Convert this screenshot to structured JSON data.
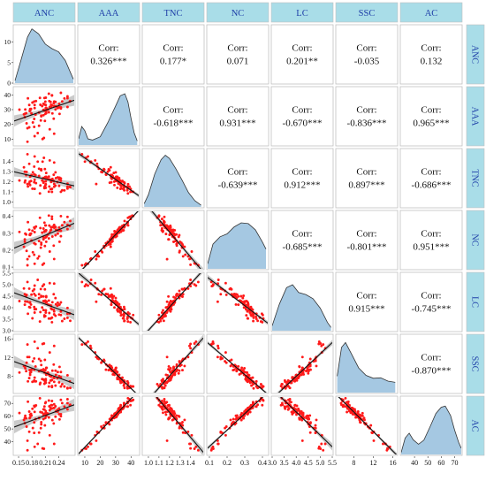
{
  "chart_data": {
    "type": "scatter",
    "variables": [
      "ANC",
      "AAA",
      "TNC",
      "NC",
      "LC",
      "SSC",
      "AC"
    ],
    "axes": {
      "ANC": {
        "range": [
          0.14,
          0.275
        ],
        "ticks": [
          0.15,
          0.18,
          0.21,
          0.24
        ],
        "tick_labels": [
          "0.15",
          "0.18",
          "0.21",
          "0.24"
        ]
      },
      "AAA": {
        "range": [
          6,
          45
        ],
        "ticks": [
          10,
          20,
          30,
          40
        ],
        "tick_labels": [
          "10",
          "20",
          "30",
          "40"
        ]
      },
      "TNC": {
        "range": [
          0.95,
          1.52
        ],
        "ticks": [
          1.0,
          1.1,
          1.2,
          1.3,
          1.4
        ],
        "tick_labels": [
          "1.0",
          "1.1",
          "1.2",
          "1.3",
          "1.4"
        ]
      },
      "NC": {
        "range": [
          0.09,
          0.43
        ],
        "ticks": [
          0.1,
          0.2,
          0.3,
          0.4
        ],
        "tick_labels": [
          "0.1",
          "0.2",
          "0.3",
          "0.4"
        ]
      },
      "LC": {
        "range": [
          3.0,
          5.5
        ],
        "ticks": [
          3.0,
          3.5,
          4.0,
          4.5,
          5.0,
          5.5
        ],
        "tick_labels": [
          "3.0",
          "3.5",
          "4.0",
          "4.5",
          "5.0",
          "5.5"
        ]
      },
      "SSC": {
        "range": [
          4.5,
          16.8
        ],
        "ticks": [
          8,
          12,
          16
        ],
        "tick_labels": [
          "8",
          "12",
          "16"
        ]
      },
      "AC": {
        "range": [
          30,
          75
        ],
        "ticks": [
          40,
          50,
          60,
          70
        ],
        "tick_labels": [
          "40",
          "50",
          "60",
          "70"
        ]
      }
    },
    "bottom_tick_labels": {
      "ANC": [
        "0.15",
        "0.18",
        "0.21",
        "0.24"
      ],
      "AAA": [
        "10",
        "20",
        "30",
        "40"
      ],
      "TNC": [
        "1.0",
        "1.1",
        "1.2",
        "1.3",
        "1.4"
      ],
      "NC": [
        "0.1",
        "0.2",
        "0.3",
        "0.4"
      ],
      "LC": [
        "3.0",
        "3.5",
        "4.0",
        "4.5",
        "5.0",
        "5.5"
      ],
      "SSC": [
        "8",
        "12",
        "16"
      ],
      "AC": [
        "40",
        "50",
        "60",
        "70"
      ]
    },
    "left_tick_labels": {
      "ANC": [
        "0",
        "5",
        "10"
      ],
      "AAA": [
        "10",
        "20",
        "30",
        "40"
      ],
      "TNC": [
        "1.0",
        "1.1",
        "1.2",
        "1.3",
        "1.4"
      ],
      "NC": [
        "0.1",
        "0.2",
        "0.3",
        "0.4"
      ],
      "LC": [
        "3.0",
        "3.5",
        "4.0",
        "4.5",
        "5.0",
        "5.5"
      ],
      "SSC": [
        "8",
        "12",
        "16"
      ],
      "AC": [
        "40",
        "50",
        "60",
        "70"
      ]
    },
    "density_y_range": [
      0,
      14
    ],
    "density_ticks": [
      0,
      5,
      10
    ],
    "correlation_label": "Corr:",
    "correlations": [
      {
        "row": "AAA",
        "col": "ANC",
        "text": "0.326***",
        "r": 0.326
      },
      {
        "row": "TNC",
        "col": "ANC",
        "text": "0.177*",
        "r": 0.177
      },
      {
        "row": "NC",
        "col": "ANC",
        "text": "0.071",
        "r": 0.071
      },
      {
        "row": "LC",
        "col": "ANC",
        "text": "0.201**",
        "r": 0.201
      },
      {
        "row": "SSC",
        "col": "ANC",
        "text": "-0.035",
        "r": -0.035
      },
      {
        "row": "AC",
        "col": "ANC",
        "text": "0.132",
        "r": 0.132
      },
      {
        "row": "TNC",
        "col": "AAA",
        "text": "-0.618***",
        "r": -0.618
      },
      {
        "row": "NC",
        "col": "AAA",
        "text": "0.931***",
        "r": 0.931
      },
      {
        "row": "LC",
        "col": "AAA",
        "text": "-0.670***",
        "r": -0.67
      },
      {
        "row": "SSC",
        "col": "AAA",
        "text": "-0.836***",
        "r": -0.836
      },
      {
        "row": "AC",
        "col": "AAA",
        "text": "0.965***",
        "r": 0.965
      },
      {
        "row": "NC",
        "col": "TNC",
        "text": "-0.639***",
        "r": -0.639
      },
      {
        "row": "LC",
        "col": "TNC",
        "text": "0.912***",
        "r": 0.912
      },
      {
        "row": "SSC",
        "col": "TNC",
        "text": "0.897***",
        "r": 0.897
      },
      {
        "row": "AC",
        "col": "TNC",
        "text": "-0.686***",
        "r": -0.686
      },
      {
        "row": "LC",
        "col": "NC",
        "text": "-0.685***",
        "r": -0.685
      },
      {
        "row": "SSC",
        "col": "NC",
        "text": "-0.801***",
        "r": -0.801
      },
      {
        "row": "AC",
        "col": "NC",
        "text": "0.951***",
        "r": 0.951
      },
      {
        "row": "SSC",
        "col": "LC",
        "text": "0.915***",
        "r": 0.915
      },
      {
        "row": "AC",
        "col": "LC",
        "text": "-0.745***",
        "r": -0.745
      },
      {
        "row": "AC",
        "col": "SSC",
        "text": "-0.870***",
        "r": -0.87
      }
    ],
    "densities": {
      "ANC": [
        [
          0.142,
          0.6
        ],
        [
          0.155,
          5.5
        ],
        [
          0.17,
          11.2
        ],
        [
          0.18,
          13.2
        ],
        [
          0.195,
          12.0
        ],
        [
          0.21,
          9.5
        ],
        [
          0.225,
          8.4
        ],
        [
          0.24,
          7.6
        ],
        [
          0.255,
          5.5
        ],
        [
          0.268,
          2.2
        ],
        [
          0.273,
          1.0
        ]
      ],
      "AAA": [
        [
          6,
          1.5
        ],
        [
          8,
          4.5
        ],
        [
          10,
          3.5
        ],
        [
          12,
          1.5
        ],
        [
          15,
          1.2
        ],
        [
          20,
          2.0
        ],
        [
          25,
          5.5
        ],
        [
          30,
          9.5
        ],
        [
          33,
          12.0
        ],
        [
          36,
          12.5
        ],
        [
          38,
          10.5
        ],
        [
          40,
          6.5
        ],
        [
          42,
          3.0
        ],
        [
          44,
          1.0
        ]
      ],
      "TNC": [
        [
          0.96,
          0.8
        ],
        [
          1.0,
          3.0
        ],
        [
          1.06,
          8.0
        ],
        [
          1.12,
          11.5
        ],
        [
          1.16,
          12.6
        ],
        [
          1.2,
          11.8
        ],
        [
          1.26,
          9.3
        ],
        [
          1.32,
          6.5
        ],
        [
          1.38,
          3.5
        ],
        [
          1.44,
          1.5
        ],
        [
          1.5,
          0.4
        ]
      ],
      "NC": [
        [
          0.09,
          1.2
        ],
        [
          0.12,
          6.0
        ],
        [
          0.16,
          7.8
        ],
        [
          0.2,
          8.5
        ],
        [
          0.24,
          10.2
        ],
        [
          0.28,
          11.2
        ],
        [
          0.32,
          11.0
        ],
        [
          0.36,
          9.5
        ],
        [
          0.4,
          6.5
        ],
        [
          0.42,
          4.8
        ]
      ],
      "LC": [
        [
          3.0,
          1.2
        ],
        [
          3.3,
          6.5
        ],
        [
          3.6,
          10.5
        ],
        [
          3.85,
          11.2
        ],
        [
          4.1,
          9.3
        ],
        [
          4.4,
          8.8
        ],
        [
          4.7,
          7.8
        ],
        [
          5.0,
          5.5
        ],
        [
          5.3,
          2.0
        ],
        [
          5.45,
          0.8
        ]
      ],
      "SSC": [
        [
          4.6,
          4.0
        ],
        [
          5.5,
          11.0
        ],
        [
          6.3,
          12.2
        ],
        [
          7.5,
          9.5
        ],
        [
          9.0,
          6.0
        ],
        [
          10.5,
          4.2
        ],
        [
          12.0,
          3.5
        ],
        [
          13.5,
          3.6
        ],
        [
          15.0,
          2.8
        ],
        [
          16.5,
          2.5
        ]
      ],
      "AC": [
        [
          30,
          0.5
        ],
        [
          33,
          4.0
        ],
        [
          36,
          5.2
        ],
        [
          39,
          3.6
        ],
        [
          43,
          2.5
        ],
        [
          47,
          3.5
        ],
        [
          52,
          7.0
        ],
        [
          56,
          10.0
        ],
        [
          60,
          11.5
        ],
        [
          63,
          11.8
        ],
        [
          67,
          9.5
        ],
        [
          70,
          6.0
        ],
        [
          73,
          3.0
        ],
        [
          75,
          1.5
        ]
      ]
    },
    "points": {
      "ANC": [
        0.17,
        0.229,
        0.179,
        0.206,
        0.186,
        0.212,
        0.209,
        0.248,
        0.199,
        0.208,
        0.181,
        0.253,
        0.164,
        0.233,
        0.213,
        0.23,
        0.222,
        0.207,
        0.165,
        0.211,
        0.2,
        0.185,
        0.225,
        0.17,
        0.182,
        0.21,
        0.162,
        0.201,
        0.216,
        0.266,
        0.186,
        0.22,
        0.223,
        0.196,
        0.168,
        0.188,
        0.245,
        0.164,
        0.189,
        0.242,
        0.206,
        0.204,
        0.218,
        0.229,
        0.185,
        0.193,
        0.23,
        0.208,
        0.238,
        0.175,
        0.22,
        0.203,
        0.212,
        0.234,
        0.245,
        0.211,
        0.186,
        0.196,
        0.176,
        0.206,
        0.26,
        0.226,
        0.241,
        0.178,
        0.152,
        0.201,
        0.237,
        0.198,
        0.171,
        0.219,
        0.23,
        0.167,
        0.26,
        0.233,
        0.225,
        0.245,
        0.218,
        0.26,
        0.225,
        0.223,
        0.265,
        0.185,
        0.174,
        0.176,
        0.174,
        0.212,
        0.21,
        0.241,
        0.211,
        0.208
      ],
      "AAA": [
        17.4,
        23.9,
        27.5,
        34.0,
        33.2,
        27.6,
        22.4,
        35.6,
        33.3,
        33.5,
        34.8,
        37.6,
        27.2,
        30.1,
        30.3,
        35.5,
        35.2,
        10.8,
        30.1,
        31.1,
        22.7,
        35.5,
        39.6,
        8.2,
        21.3,
        35.4,
        26.8,
        26.0,
        30.2,
        35.8,
        12.0,
        31.8,
        33.3,
        19.1,
        20.7,
        26.7,
        30.8,
        24.9,
        35.8,
        27.1,
        29.9,
        10.1,
        40.8,
        34.4,
        18.3,
        14.1,
        13.7,
        37.9,
        31.1,
        29.1,
        16.7,
        32.4,
        28.8,
        32.3,
        41.4,
        33.2,
        31.1,
        28.0,
        29.2,
        26.2,
        39.0,
        27.5,
        33.9,
        30.5,
        30.0,
        25.5,
        31.8,
        38.0,
        37.7,
        35.8,
        32.4,
        27.6,
        37.8,
        35.3,
        32.9,
        31.5,
        28.2,
        31.8,
        39.8,
        31.8,
        35.5,
        23.7,
        18.0,
        30.4,
        33.2,
        31.2,
        27.1,
        31.6,
        38.1,
        29.3
      ],
      "TNC": [
        1.177,
        1.269,
        1.266,
        1.201,
        1.129,
        1.24,
        1.325,
        1.115,
        1.163,
        1.136,
        1.131,
        1.114,
        1.194,
        1.293,
        1.239,
        1.15,
        1.126,
        1.437,
        1.211,
        1.139,
        1.319,
        1.195,
        1.099,
        1.473,
        1.294,
        1.164,
        1.343,
        1.313,
        1.226,
        1.146,
        1.451,
        1.223,
        1.197,
        1.329,
        1.297,
        1.267,
        1.232,
        1.299,
        1.186,
        1.239,
        1.238,
        1.399,
        1.101,
        1.208,
        1.35,
        1.399,
        1.39,
        1.147,
        1.243,
        1.201,
        1.411,
        1.212,
        1.287,
        1.236,
        1.1,
        1.203,
        1.218,
        1.257,
        1.167,
        1.19,
        1.151,
        1.228,
        1.159,
        1.207,
        1.212,
        1.323,
        1.196,
        1.084,
        1.153,
        1.153,
        1.178,
        1.265,
        1.132,
        1.161,
        1.211,
        1.21,
        1.251,
        1.181,
        1.129,
        1.219,
        1.149,
        1.273,
        1.377,
        1.25,
        1.182,
        1.249,
        1.247,
        1.223,
        1.175,
        1.234
      ],
      "NC": [
        0.147,
        0.227,
        0.257,
        0.328,
        0.329,
        0.25,
        0.225,
        0.348,
        0.331,
        0.309,
        0.316,
        0.366,
        0.264,
        0.289,
        0.283,
        0.35,
        0.318,
        0.122,
        0.298,
        0.314,
        0.215,
        0.335,
        0.399,
        0.111,
        0.188,
        0.347,
        0.22,
        0.244,
        0.293,
        0.373,
        0.12,
        0.305,
        0.336,
        0.164,
        0.196,
        0.236,
        0.283,
        0.25,
        0.34,
        0.25,
        0.278,
        0.114,
        0.405,
        0.345,
        0.173,
        0.151,
        0.148,
        0.363,
        0.298,
        0.291,
        0.192,
        0.304,
        0.279,
        0.32,
        0.402,
        0.318,
        0.307,
        0.254,
        0.296,
        0.264,
        0.397,
        0.281,
        0.334,
        0.298,
        0.308,
        0.234,
        0.318,
        0.392,
        0.366,
        0.346,
        0.333,
        0.293,
        0.35,
        0.338,
        0.336,
        0.315,
        0.27,
        0.325,
        0.385,
        0.32,
        0.344,
        0.241,
        0.164,
        0.29,
        0.321,
        0.318,
        0.274,
        0.316,
        0.347,
        0.313
      ],
      "LC": [
        4.26,
        4.59,
        4.57,
        3.9,
        3.79,
        4.46,
        4.8,
        3.42,
        3.81,
        3.67,
        3.54,
        3.52,
        4.13,
        4.42,
        4.26,
        3.71,
        3.53,
        5.01,
        4.27,
        3.89,
        4.81,
        4.03,
        3.37,
        5.12,
        4.73,
        3.64,
        4.84,
        4.51,
        4.14,
        3.43,
        4.96,
        4.11,
        3.96,
        4.59,
        4.56,
        4.53,
        4.23,
        4.59,
        3.94,
        4.14,
        4.29,
        4.94,
        3.53,
        3.91,
        4.8,
        5.21,
        5.05,
        3.61,
        4.22,
        4.22,
        5.07,
        4.01,
        4.5,
        4.15,
        3.68,
        3.88,
        3.93,
        4.42,
        4.01,
        4.49,
        3.74,
        4.24,
        3.7,
        4.14,
        4.29,
        4.48,
        4.09,
        3.4,
        3.74,
        3.77,
        3.84,
        4.52,
        3.56,
        3.65,
        3.93,
        3.84,
        4.31,
        3.99,
        3.57,
        4.09,
        3.75,
        4.6,
        4.83,
        4.24,
        4.03,
        4.22,
        4.31,
        4.13,
        3.79,
        4.27
      ],
      "SSC": [
        12.1,
        10.5,
        9.4,
        7.3,
        6.9,
        9.8,
        11.5,
        6.3,
        6.6,
        7.1,
        6.8,
        5.8,
        10.1,
        9.2,
        9.8,
        6.8,
        7.1,
        15.0,
        9.7,
        7.4,
        11.3,
        7.1,
        5.9,
        14.8,
        11.2,
        6.8,
        10.2,
        10.4,
        8.8,
        5.5,
        15.4,
        8.1,
        7.1,
        11.7,
        10.9,
        10.1,
        8.9,
        10.2,
        6.9,
        10.0,
        9.3,
        14.9,
        5.8,
        7.7,
        11.8,
        14.0,
        14.5,
        6.4,
        8.9,
        9.3,
        13.1,
        7.4,
        8.6,
        8.3,
        5.8,
        7.1,
        7.7,
        9.1,
        8.3,
        9.5,
        5.5,
        9.2,
        6.7,
        8.9,
        8.8,
        9.3,
        7.6,
        6.3,
        6.9,
        6.6,
        7.6,
        9.1,
        5.4,
        6.0,
        7.2,
        7.8,
        8.4,
        8.2,
        5.7,
        7.9,
        6.9,
        9.4,
        12.1,
        8.7,
        7.6,
        8.3,
        9.3,
        8.0,
        6.6,
        8.8
      ],
      "AC": [
        40.8,
        54.3,
        60.5,
        65.4,
        67.4,
        60.3,
        52.8,
        70.2,
        63.2,
        65.2,
        65.8,
        67.5,
        58.6,
        59.6,
        62.3,
        69.3,
        66.5,
        34.5,
        60.3,
        62.7,
        50.6,
        68.1,
        68.6,
        33.3,
        50.7,
        70.2,
        57.1,
        53.6,
        61.9,
        69.0,
        36.0,
        64.7,
        68.6,
        47.2,
        51.8,
        57.7,
        60.0,
        54.5,
        68.4,
        57.5,
        61.0,
        34.8,
        72.2,
        66.4,
        46.9,
        38.3,
        38.3,
        67.6,
        63.6,
        58.5,
        45.0,
        62.8,
        60.1,
        63.7,
        72.8,
        64.0,
        63.4,
        58.6,
        61.2,
        57.7,
        73.3,
        56.9,
        66.0,
        61.8,
        62.5,
        55.3,
        64.8,
        74.0,
        71.3,
        67.7,
        66.5,
        58.3,
        70.2,
        67.7,
        66.1,
        61.6,
        59.0,
        65.4,
        71.9,
        65.8,
        68.6,
        55.1,
        47.8,
        59.2,
        63.6,
        62.1,
        58.5,
        61.6,
        71.0,
        61.9
      ]
    }
  },
  "colors": {
    "header_bg": "#a9dde8",
    "header_text": "#1f3fa8",
    "panel_border": "#c0c0c0",
    "density_fill": "#a5c8e2",
    "density_line": "#333333",
    "point": "#ff1a1a",
    "fit_line": "#111111",
    "ci_band": "#b8b8b8",
    "text": "#111111"
  }
}
